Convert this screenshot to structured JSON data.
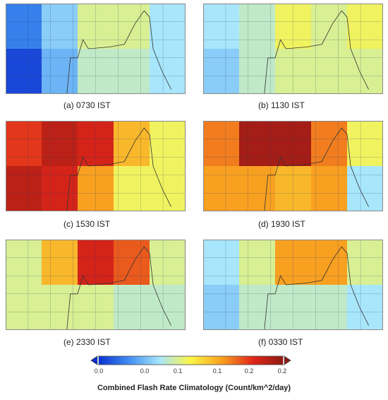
{
  "chart_data": {
    "type": "heatmap",
    "grid_rows": 2,
    "grid_cols": 5,
    "colorbar": {
      "title": "Combined Flash Rate Climatology (Count/km^2/day)",
      "tick_labels": [
        "0.0",
        "0.0",
        "0.1",
        "0.1",
        "0.2",
        "0.2"
      ],
      "range": [
        0.0,
        0.21
      ],
      "colors": [
        "#0a2ccf",
        "#3f8ef0",
        "#a8e6fb",
        "#fcf545",
        "#f8a020",
        "#e0261a",
        "#8c1a14"
      ]
    },
    "panels": [
      {
        "caption": "(a)  0730 IST",
        "values": [
          [
            0.03,
            0.06,
            0.09,
            0.09,
            0.07
          ],
          [
            0.01,
            0.05,
            0.08,
            0.08,
            0.07
          ]
        ]
      },
      {
        "caption": "(b) 1130 IST",
        "values": [
          [
            0.07,
            0.08,
            0.1,
            0.09,
            0.1
          ],
          [
            0.06,
            0.08,
            0.09,
            0.09,
            0.09
          ]
        ]
      },
      {
        "caption": "(c) 1530 IST",
        "values": [
          [
            0.17,
            0.19,
            0.18,
            0.13,
            0.1
          ],
          [
            0.19,
            0.18,
            0.14,
            0.1,
            0.1
          ]
        ]
      },
      {
        "caption": "(d) 1930 IST",
        "values": [
          [
            0.15,
            0.2,
            0.2,
            0.15,
            0.1
          ],
          [
            0.14,
            0.14,
            0.13,
            0.14,
            0.07
          ]
        ]
      },
      {
        "caption": "(e) 2330 IST",
        "values": [
          [
            0.09,
            0.13,
            0.18,
            0.16,
            0.09
          ],
          [
            0.09,
            0.09,
            0.09,
            0.08,
            0.08
          ]
        ]
      },
      {
        "caption": "(f)  0330 IST",
        "values": [
          [
            0.07,
            0.09,
            0.14,
            0.14,
            0.09
          ],
          [
            0.06,
            0.08,
            0.08,
            0.08,
            0.07
          ]
        ]
      }
    ]
  }
}
